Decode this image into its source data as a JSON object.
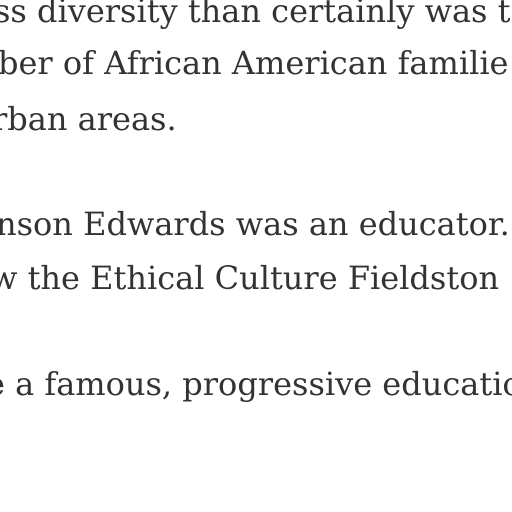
{
  "document": {
    "lines": [
      "ss diversity than certainly was t",
      "ber of African American familie",
      "rban areas.",
      "nson Edwards was an educator.",
      "w the Ethical Culture Fieldston",
      "e a famous, progressive educatio"
    ]
  }
}
